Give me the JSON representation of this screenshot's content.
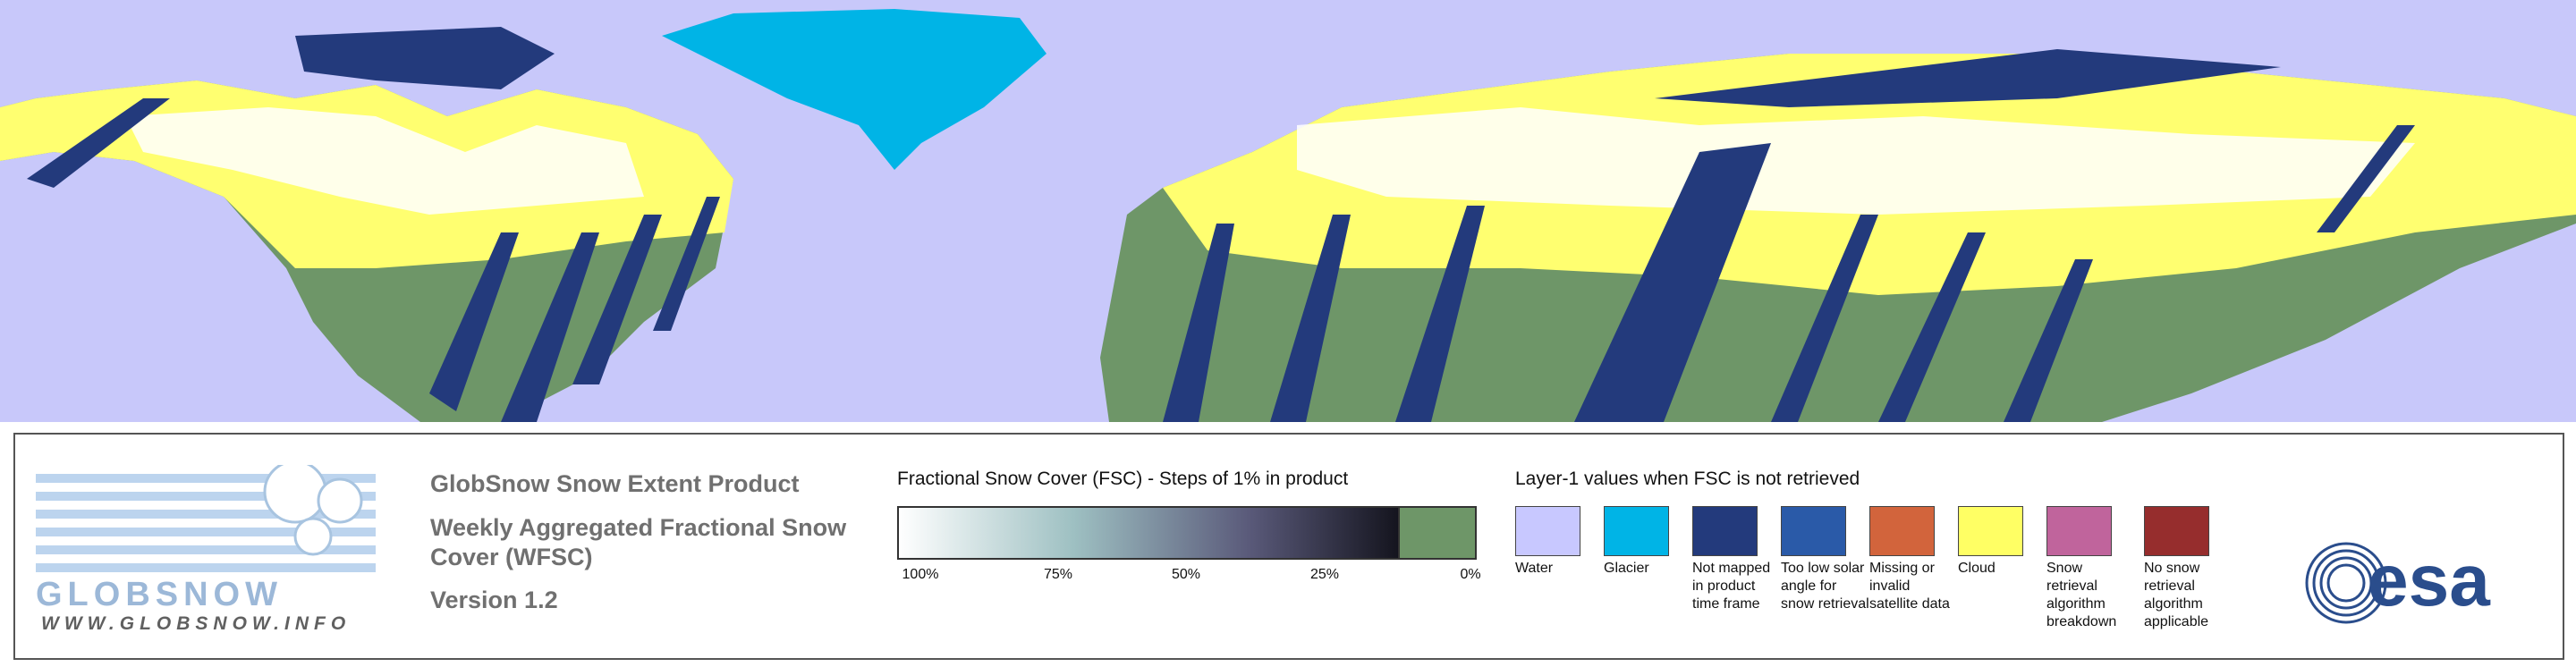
{
  "logo": {
    "name": "GLOBSNOW",
    "url": "WWW.GLOBSNOW.INFO"
  },
  "product": {
    "title": "GlobSnow Snow Extent Product",
    "subtitle": "Weekly Aggregated Fractional Snow Cover (WFSC)",
    "version": "Version 1.2"
  },
  "fsc_legend": {
    "title": "Fractional Snow Cover (FSC) - Steps of 1% in product",
    "ticks": [
      "100%",
      "75%",
      "50%",
      "25%",
      "0%"
    ]
  },
  "layer1_legend": {
    "title": "Layer-1 values when FSC is not retrieved",
    "items": [
      {
        "label": "Water",
        "color": "#c8c8ff"
      },
      {
        "label": "Glacier",
        "color": "#00b4e6"
      },
      {
        "label": "Not mapped in product time frame",
        "color": "#233a7c"
      },
      {
        "label": "Too low solar angle for snow retrieval",
        "color": "#2a5aa8"
      },
      {
        "label": "Missing or invalid satellite data",
        "color": "#d2643c"
      },
      {
        "label": "Cloud",
        "color": "#ffff64"
      },
      {
        "label": "Snow retrieval algorithm breakdown",
        "color": "#c0649c"
      },
      {
        "label": "No snow retrieval algorithm applicable",
        "color": "#962d2d"
      }
    ]
  },
  "esa": "esa"
}
